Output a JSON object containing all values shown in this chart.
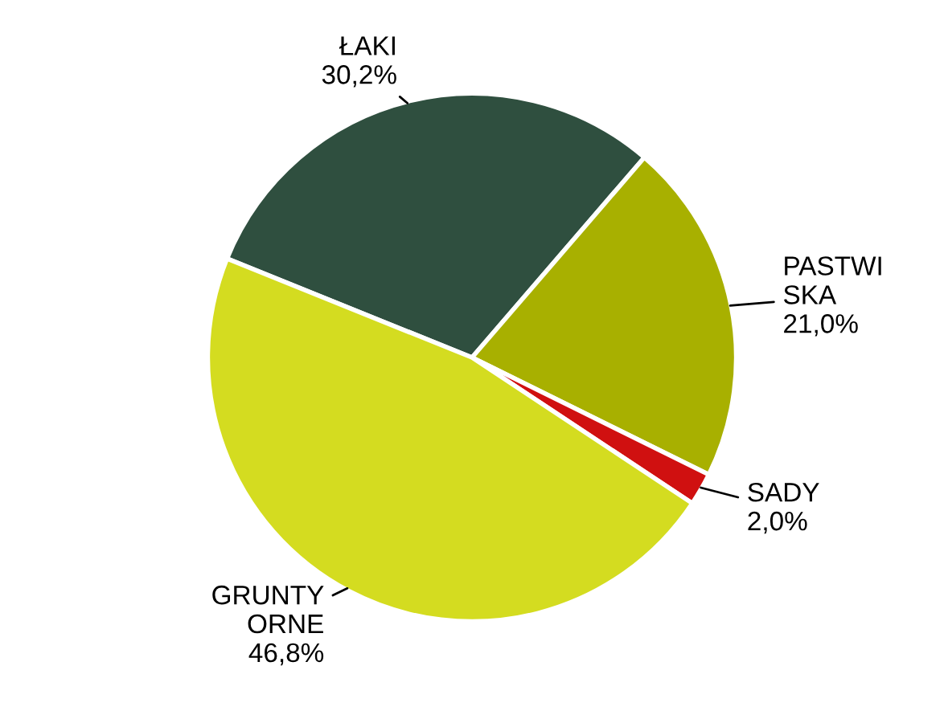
{
  "chart_data": {
    "type": "pie",
    "categories": [
      "ŁAKI",
      "PASTWI\nSKA",
      "SADY",
      "GRUNTY\nORNE"
    ],
    "values": [
      30.2,
      21.0,
      2.0,
      46.8
    ],
    "value_labels": [
      "30,2%",
      "21,0%",
      "2,0%",
      "46,8%"
    ],
    "colors": [
      "#2f4f3f",
      "#a8b000",
      "#d01010",
      "#d4dc20"
    ],
    "legend": false
  }
}
